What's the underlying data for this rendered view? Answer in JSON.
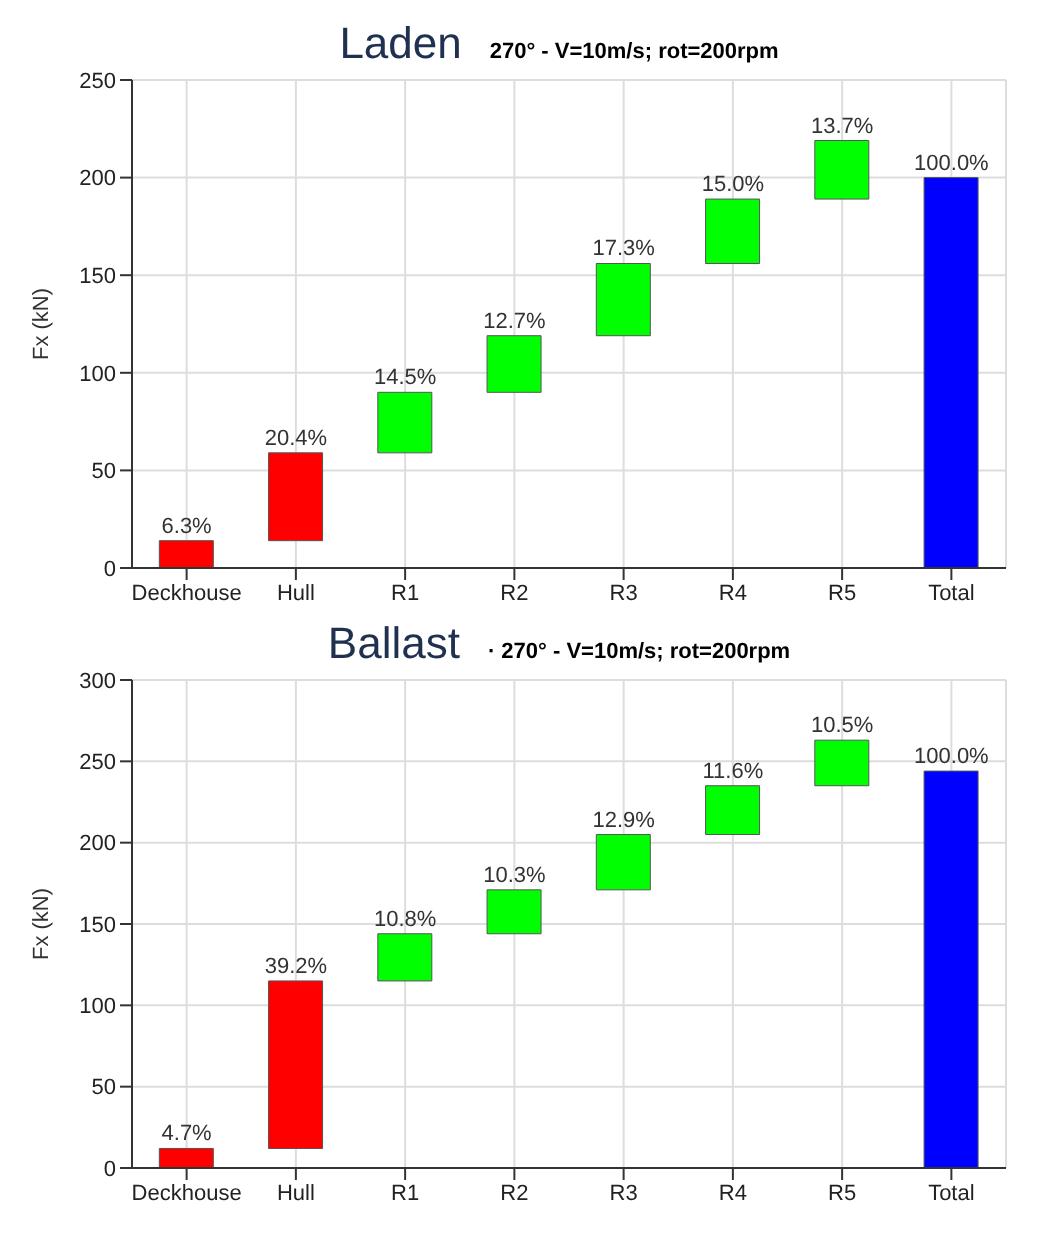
{
  "chart_data": [
    {
      "type": "bar",
      "title": "Laden",
      "subtitle": "270° - V=10m/s; rot=200rpm",
      "ylabel": "Fx (kN)",
      "categories": [
        "Deckhouse",
        "Hull",
        "R1",
        "R2",
        "R3",
        "R4",
        "R5",
        "Total"
      ],
      "values": [
        14,
        45,
        31,
        29,
        37,
        33,
        30,
        200
      ],
      "base": [
        0,
        14,
        59,
        90,
        119,
        156,
        189,
        0
      ],
      "colors": [
        "#ff0000",
        "#ff0000",
        "#00ff00",
        "#00ff00",
        "#00ff00",
        "#00ff00",
        "#00ff00",
        "#0000ff"
      ],
      "annotations": [
        {
          "text": "6.3%",
          "x": "Deckhouse",
          "y": 14
        },
        {
          "text": "20.4%",
          "x": "Hull",
          "y": 59
        },
        {
          "text": "14.5%",
          "x": "R1",
          "y": 90
        },
        {
          "text": "12.7%",
          "x": "R2",
          "y": 119
        },
        {
          "text": "17.3%",
          "x": "R3",
          "y": 156
        },
        {
          "text": "15.0%",
          "x": "R4",
          "y": 189
        },
        {
          "text": "13.7%",
          "x": "R5",
          "y": 219
        },
        {
          "text": "100.0%",
          "x": "Total",
          "y": 200
        }
      ],
      "ylim": [
        0,
        250
      ],
      "yticks": [
        0,
        50,
        100,
        150,
        200,
        250
      ],
      "grid": true
    },
    {
      "type": "bar",
      "title": "Ballast",
      "subtitle": "· 270° - V=10m/s; rot=200rpm",
      "ylabel": "Fx (kN)",
      "categories": [
        "Deckhouse",
        "Hull",
        "R1",
        "R2",
        "R3",
        "R4",
        "R5",
        "Total"
      ],
      "values": [
        12,
        103,
        29,
        27,
        34,
        30,
        28,
        244
      ],
      "base": [
        0,
        12,
        115,
        144,
        171,
        205,
        235,
        0
      ],
      "colors": [
        "#ff0000",
        "#ff0000",
        "#00ff00",
        "#00ff00",
        "#00ff00",
        "#00ff00",
        "#00ff00",
        "#0000ff"
      ],
      "annotations": [
        {
          "text": "4.7%",
          "x": "Deckhouse",
          "y": 12
        },
        {
          "text": "39.2%",
          "x": "Hull",
          "y": 115
        },
        {
          "text": "10.8%",
          "x": "R1",
          "y": 144
        },
        {
          "text": "10.3%",
          "x": "R2",
          "y": 171
        },
        {
          "text": "12.9%",
          "x": "R3",
          "y": 205
        },
        {
          "text": "11.6%",
          "x": "R4",
          "y": 235
        },
        {
          "text": "10.5%",
          "x": "R5",
          "y": 263
        },
        {
          "text": "100.0%",
          "x": "Total",
          "y": 244
        }
      ],
      "ylim": [
        0,
        300
      ],
      "yticks": [
        0,
        50,
        100,
        150,
        200,
        250,
        300
      ],
      "grid": true
    }
  ]
}
